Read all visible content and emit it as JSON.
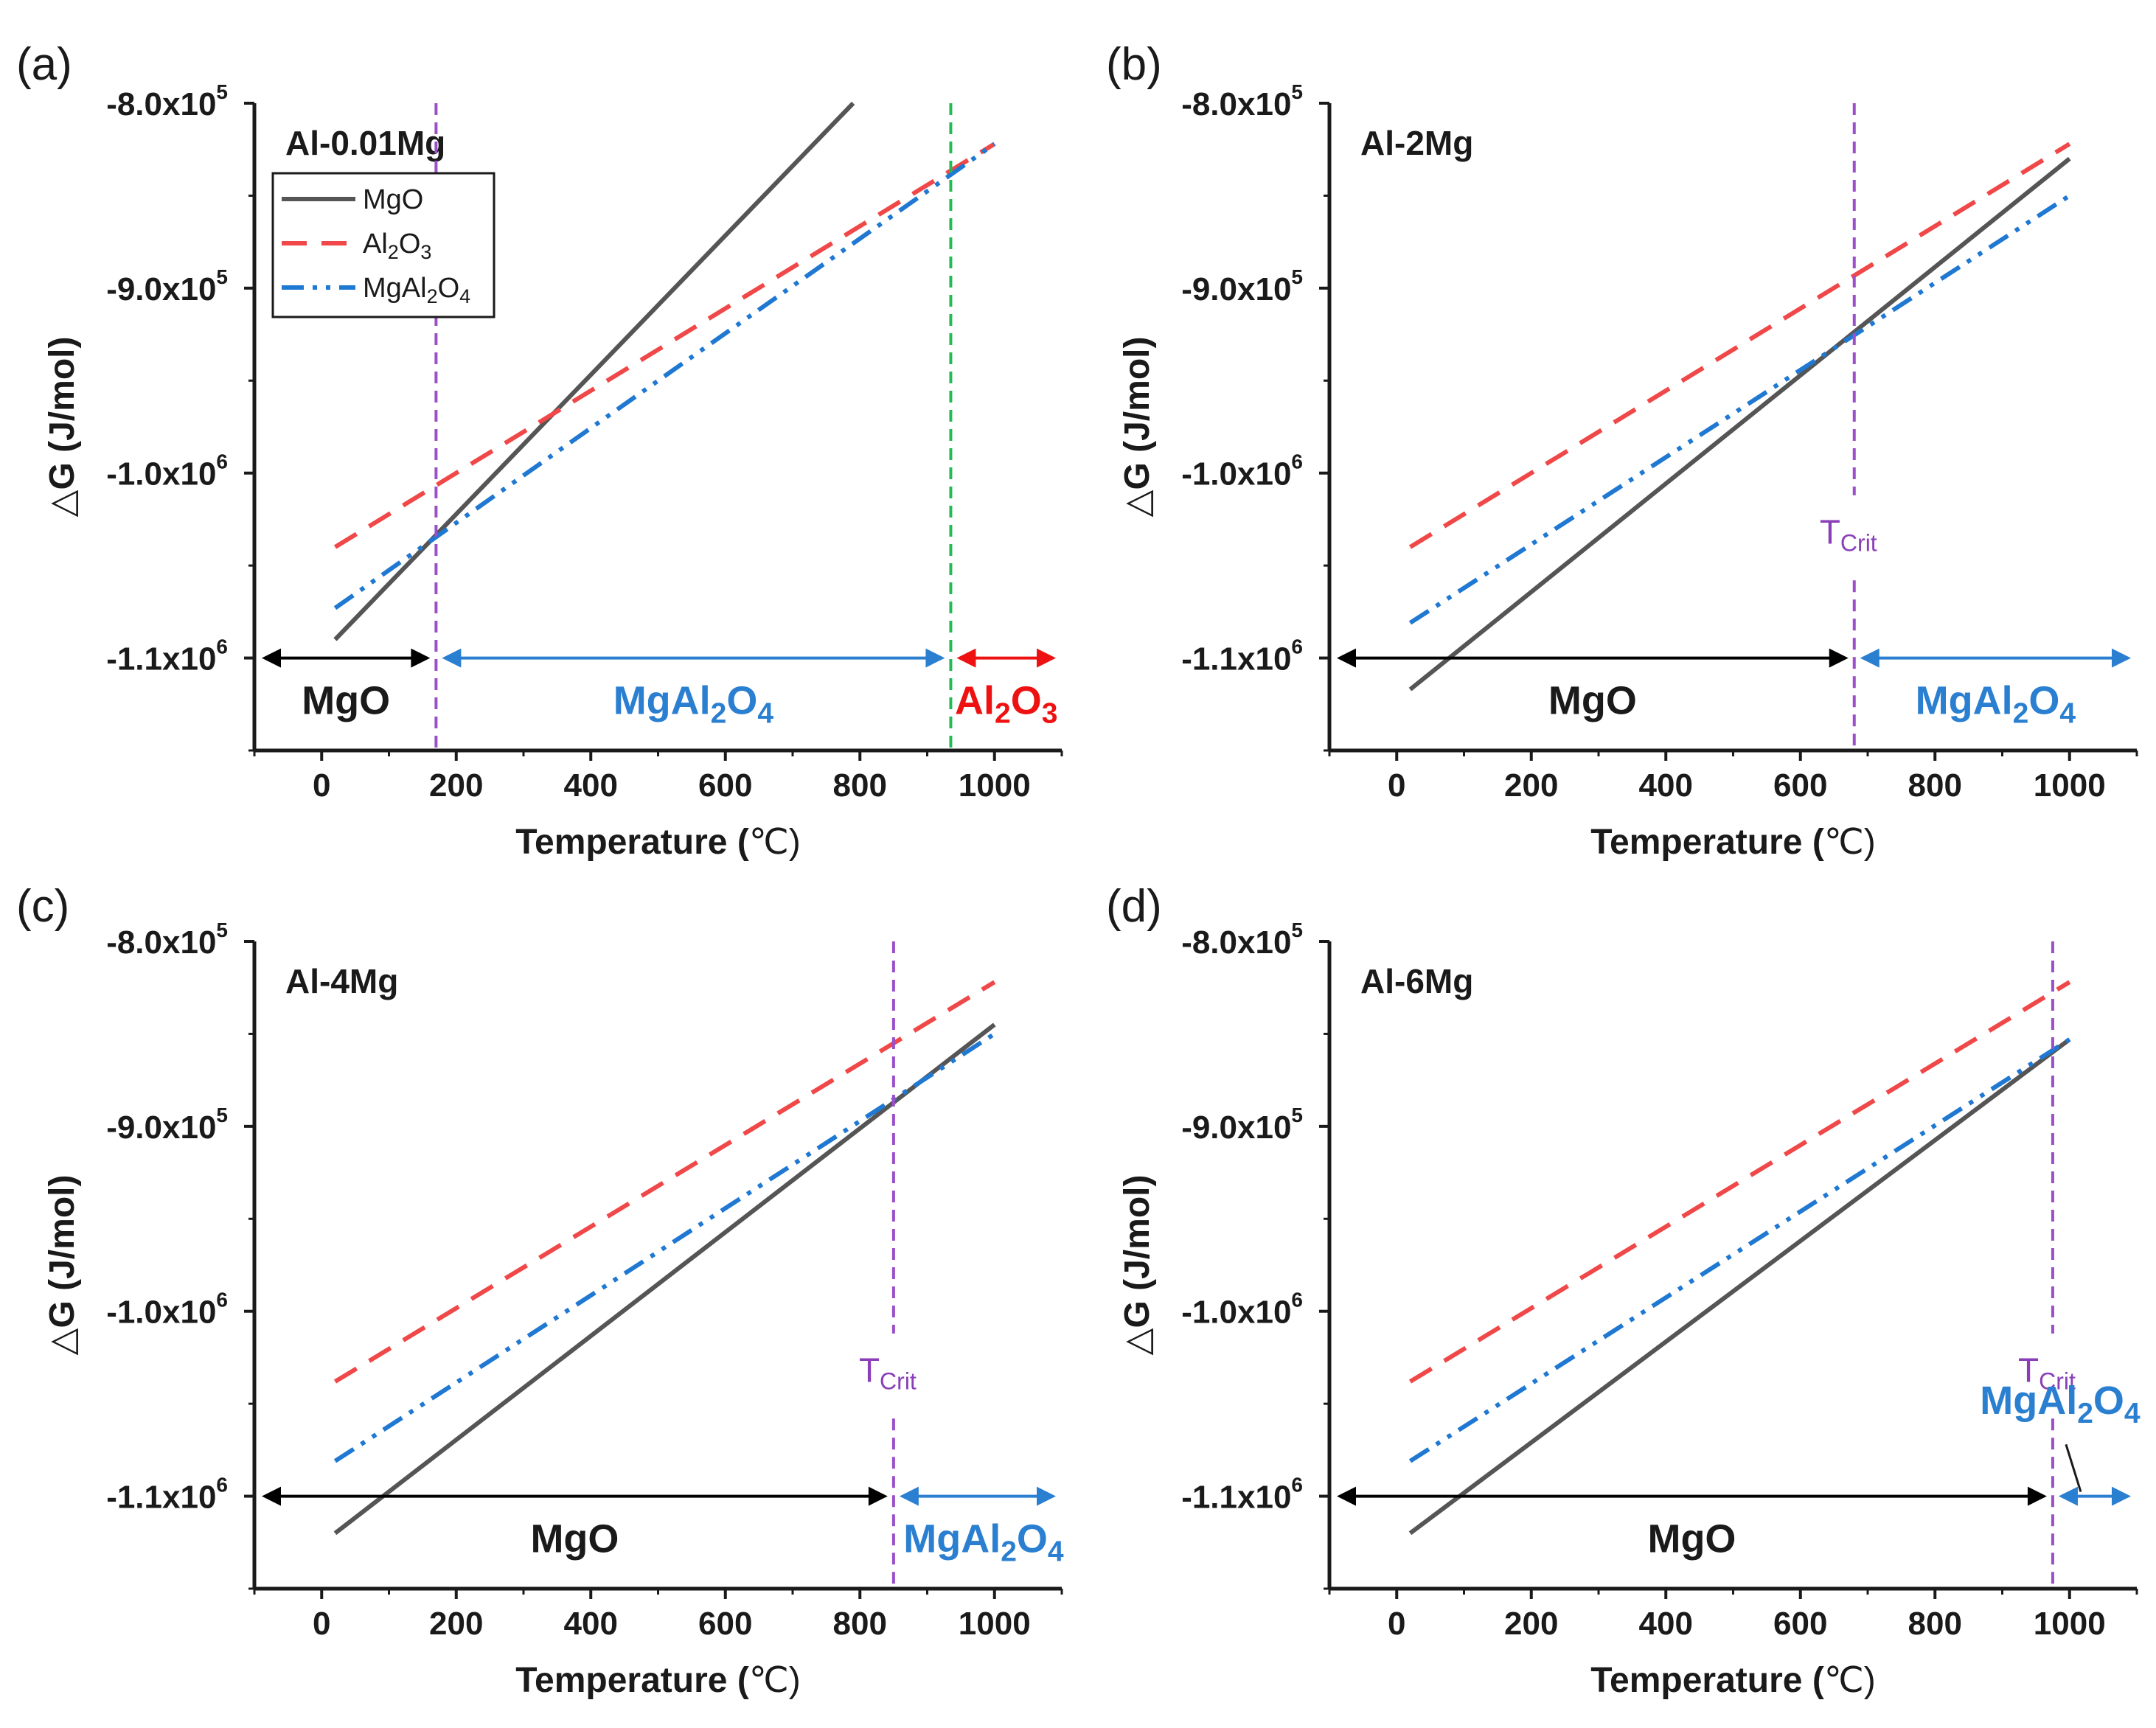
{
  "colors": {
    "MgO": "#555555",
    "Al2O3": "#f04848",
    "MgAl2O4": "#1f78d1",
    "tcrit_line": "#9b4fc8",
    "al_line": "#22bb55",
    "arrow_black": "#000000",
    "arrow_blue": "#2a7fd0",
    "arrow_red": "#ee1111"
  },
  "shared": {
    "xlabel_main": "Temperature (",
    "xlabel_unit": "℃)",
    "ylabel_delta": "△",
    "ylabel_rest": "G (J/mol)",
    "yticks": [
      {
        "value": -800000,
        "base": "-8.0x10",
        "exp": "5"
      },
      {
        "value": -900000,
        "base": "-9.0x10",
        "exp": "5"
      },
      {
        "value": -1000000,
        "base": "-1.0x10",
        "exp": "6"
      },
      {
        "value": -1100000,
        "base": "-1.1x10",
        "exp": "6"
      }
    ],
    "xticks": [
      0,
      200,
      400,
      600,
      800,
      1000
    ],
    "xlim": [
      -100,
      1100
    ],
    "ylim": [
      -1150000,
      -800000
    ],
    "legend": {
      "MgO": "MgO",
      "Al2O3": {
        "a": "Al",
        "s1": "2",
        "b": "O",
        "s2": "3"
      },
      "MgAl2O4": {
        "a": "MgAl",
        "s1": "2",
        "b": "O",
        "s2": "4"
      }
    },
    "tcrit": {
      "main": "T",
      "sub": "Crit"
    }
  },
  "chart_data": [
    {
      "type": "line",
      "panel_label": "(a)",
      "title": "Al-0.01Mg",
      "xlabel": "Temperature (℃)",
      "ylabel": "△G (J/mol)",
      "xlim": [
        -100,
        1100
      ],
      "ylim": [
        -1150000,
        -800000
      ],
      "series": [
        {
          "name": "MgO",
          "x": [
            20,
            790
          ],
          "y": [
            -1090000,
            -800000
          ]
        },
        {
          "name": "Al2O3",
          "x": [
            20,
            1000
          ],
          "y": [
            -1040000,
            -822000
          ]
        },
        {
          "name": "MgAl2O4",
          "x": [
            20,
            1000
          ],
          "y": [
            -1073000,
            -822000
          ]
        }
      ],
      "vlines": [
        {
          "x": 170,
          "color": "purple",
          "label": null
        },
        {
          "x": 935,
          "color": "green",
          "label": null
        }
      ],
      "regions": [
        {
          "name": "MgO",
          "from": -100,
          "to": 170,
          "color": "black"
        },
        {
          "name": "MgAl2O4",
          "from": 170,
          "to": 935,
          "color": "blue"
        },
        {
          "name": "Al2O3",
          "from": 935,
          "to": 1100,
          "color": "red"
        }
      ],
      "legend_position": "top-left"
    },
    {
      "type": "line",
      "panel_label": "(b)",
      "title": "Al-2Mg",
      "xlabel": "Temperature (℃)",
      "ylabel": "△G (J/mol)",
      "xlim": [
        -100,
        1100
      ],
      "ylim": [
        -1150000,
        -800000
      ],
      "series": [
        {
          "name": "MgO",
          "x": [
            20,
            1000
          ],
          "y": [
            -1117000,
            -830000
          ]
        },
        {
          "name": "Al2O3",
          "x": [
            20,
            1000
          ],
          "y": [
            -1040000,
            -822000
          ]
        },
        {
          "name": "MgAl2O4",
          "x": [
            20,
            1000
          ],
          "y": [
            -1081000,
            -850000
          ]
        }
      ],
      "vlines": [
        {
          "x": 680,
          "color": "purple",
          "label": "TCrit"
        }
      ],
      "regions": [
        {
          "name": "MgO",
          "from": -100,
          "to": 680,
          "color": "black"
        },
        {
          "name": "MgAl2O4",
          "from": 680,
          "to": 1100,
          "color": "blue"
        }
      ]
    },
    {
      "type": "line",
      "panel_label": "(c)",
      "title": "Al-4Mg",
      "xlabel": "Temperature (℃)",
      "ylabel": "△G (J/mol)",
      "xlim": [
        -100,
        1100
      ],
      "ylim": [
        -1150000,
        -800000
      ],
      "series": [
        {
          "name": "MgO",
          "x": [
            20,
            1000
          ],
          "y": [
            -1120000,
            -845000
          ]
        },
        {
          "name": "Al2O3",
          "x": [
            20,
            1000
          ],
          "y": [
            -1038000,
            -822000
          ]
        },
        {
          "name": "MgAl2O4",
          "x": [
            20,
            1000
          ],
          "y": [
            -1081000,
            -850000
          ]
        }
      ],
      "vlines": [
        {
          "x": 850,
          "color": "purple",
          "label": "TCrit"
        }
      ],
      "regions": [
        {
          "name": "MgO",
          "from": -100,
          "to": 850,
          "color": "black"
        },
        {
          "name": "MgAl2O4",
          "from": 850,
          "to": 1100,
          "color": "blue"
        }
      ]
    },
    {
      "type": "line",
      "panel_label": "(d)",
      "title": "Al-6Mg",
      "xlabel": "Temperature (℃)",
      "ylabel": "△G (J/mol)",
      "xlim": [
        -100,
        1100
      ],
      "ylim": [
        -1150000,
        -800000
      ],
      "series": [
        {
          "name": "MgO",
          "x": [
            20,
            1000
          ],
          "y": [
            -1120000,
            -853000
          ]
        },
        {
          "name": "Al2O3",
          "x": [
            20,
            1000
          ],
          "y": [
            -1038000,
            -822000
          ]
        },
        {
          "name": "MgAl2O4",
          "x": [
            20,
            1000
          ],
          "y": [
            -1081000,
            -853000
          ]
        }
      ],
      "vlines": [
        {
          "x": 975,
          "color": "purple",
          "label": "TCrit"
        }
      ],
      "regions": [
        {
          "name": "MgO",
          "from": -100,
          "to": 975,
          "color": "black"
        },
        {
          "name": "MgAl2O4",
          "from": 975,
          "to": 1100,
          "color": "blue"
        }
      ]
    }
  ]
}
